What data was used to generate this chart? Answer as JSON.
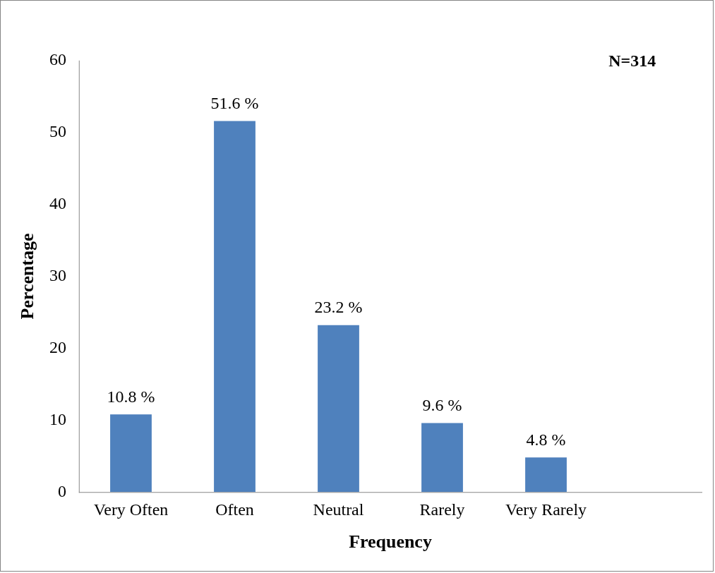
{
  "chart_data": {
    "type": "bar",
    "xlabel": "Frequency",
    "ylabel": "Percentage",
    "annotations": [
      "N=314"
    ],
    "categories": [
      "Very Often",
      "Often",
      "Neutral",
      "Rarely",
      "Very Rarely",
      null
    ],
    "values": [
      10.8,
      51.6,
      23.2,
      9.6,
      4.8,
      null
    ],
    "value_labels": [
      "10.8 %",
      "51.6 %",
      "23.2 %",
      "9.6 %",
      "4.8 %",
      null
    ],
    "color": "#4f81bd",
    "ylim": [
      0,
      60
    ],
    "yticks": [
      0,
      10,
      20,
      30,
      40,
      50,
      60
    ],
    "grid": false,
    "legend": false
  }
}
